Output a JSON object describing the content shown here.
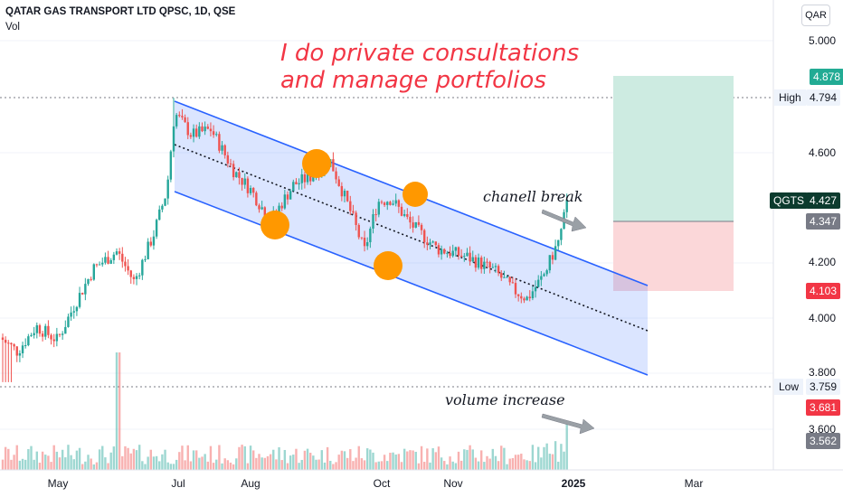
{
  "header": {
    "symbol_title": "QATAR GAS TRANSPORT LTD QPSC, 1D, QSE",
    "volume_label": "Vol",
    "currency": "QAR"
  },
  "annotations": {
    "promo_line1": "I do private consultations",
    "promo_line2": "and manage portfolios",
    "channel_break": "chanell break",
    "volume_increase": "volume increase"
  },
  "price_axis": {
    "ticks": [
      "5.000",
      "4.600",
      "4.200",
      "4.000",
      "3.800",
      "3.600"
    ],
    "labels": {
      "target": "4.878",
      "high_name": "High",
      "high": "4.794",
      "symbol": "QGTS",
      "last": "4.427",
      "entry": "4.347",
      "stop": "4.103",
      "low_name": "Low",
      "low": "3.759",
      "vol_1": "3.681",
      "vol_2": "3.562"
    }
  },
  "time_axis": {
    "ticks": [
      "May",
      "Jul",
      "Aug",
      "Oct",
      "Nov",
      "2025",
      "Mar"
    ]
  },
  "colors": {
    "up": "#26a69a",
    "down": "#ef5350",
    "channel": "#2962ff",
    "channel_fill": "#2962ff",
    "circle": "#ff9800",
    "promo": "#f23645",
    "profit_zone": "#cdebe1",
    "loss_zone": "#fbd7d9"
  },
  "chart_data": {
    "type": "candlestick",
    "title": "QATAR GAS TRANSPORT LTD QPSC, 1D, QSE",
    "symbol": "QGTS",
    "y_range": [
      3.56,
      5.05
    ],
    "x_range": [
      "2024-04-01",
      "2025-03-20"
    ],
    "high": 4.794,
    "low": 3.759,
    "last": 4.427,
    "price_path": [
      [
        "2024-04-01",
        3.93
      ],
      [
        "2024-04-10",
        3.88
      ],
      [
        "2024-04-20",
        3.97
      ],
      [
        "2024-05-01",
        3.92
      ],
      [
        "2024-05-10",
        4.05
      ],
      [
        "2024-05-20",
        4.18
      ],
      [
        "2024-06-01",
        4.24
      ],
      [
        "2024-06-10",
        4.13
      ],
      [
        "2024-06-20",
        4.3
      ],
      [
        "2024-06-27",
        4.46
      ],
      [
        "2024-07-01",
        4.74
      ],
      [
        "2024-07-10",
        4.66
      ],
      [
        "2024-07-20",
        4.68
      ],
      [
        "2024-08-01",
        4.53
      ],
      [
        "2024-08-10",
        4.46
      ],
      [
        "2024-08-20",
        4.35
      ],
      [
        "2024-09-01",
        4.48
      ],
      [
        "2024-09-10",
        4.51
      ],
      [
        "2024-09-20",
        4.57
      ],
      [
        "2024-10-01",
        4.38
      ],
      [
        "2024-10-08",
        4.24
      ],
      [
        "2024-10-15",
        4.42
      ],
      [
        "2024-10-22",
        4.43
      ],
      [
        "2024-11-01",
        4.34
      ],
      [
        "2024-11-15",
        4.25
      ],
      [
        "2024-12-01",
        4.22
      ],
      [
        "2024-12-15",
        4.17
      ],
      [
        "2024-12-25",
        4.1
      ],
      [
        "2025-01-01",
        4.07
      ],
      [
        "2025-01-10",
        4.16
      ],
      [
        "2025-01-18",
        4.29
      ],
      [
        "2025-01-22",
        4.427
      ]
    ],
    "channel": {
      "upper": [
        [
          "2024-07-01",
          4.76
        ],
        [
          "2025-02-15",
          4.09
        ]
      ],
      "middle": [
        [
          "2024-07-01",
          4.62
        ],
        [
          "2025-02-15",
          3.97
        ]
      ],
      "lower": [
        [
          "2024-07-01",
          4.46
        ],
        [
          "2025-02-15",
          3.8
        ]
      ]
    },
    "touch_points": [
      [
        "2024-08-15",
        4.37
      ],
      [
        "2024-09-10",
        4.56
      ],
      [
        "2024-10-05",
        4.21
      ],
      [
        "2024-10-20",
        4.43
      ]
    ],
    "position": {
      "entry": 4.347,
      "target": 4.878,
      "stop": 4.103
    },
    "volume_labels": [
      3.681,
      3.562
    ]
  }
}
